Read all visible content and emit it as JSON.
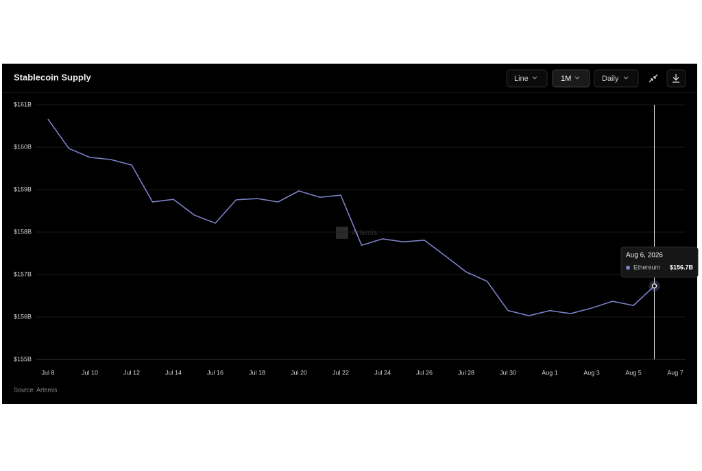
{
  "header": {
    "title": "Stablecoin Supply",
    "buttons": [
      "Line",
      "1M",
      "Daily"
    ]
  },
  "chart_data": {
    "type": "line",
    "x": [
      "2026-07-08",
      "2026-07-09",
      "2026-07-10",
      "2026-07-11",
      "2026-07-12",
      "2026-07-13",
      "2026-07-14",
      "2026-07-15",
      "2026-07-16",
      "2026-07-17",
      "2026-07-18",
      "2026-07-19",
      "2026-07-20",
      "2026-07-21",
      "2026-07-22",
      "2026-07-23",
      "2026-07-24",
      "2026-07-25",
      "2026-07-26",
      "2026-07-27",
      "2026-07-28",
      "2026-07-29",
      "2026-07-30",
      "2026-07-31",
      "2026-08-01",
      "2026-08-02",
      "2026-08-03",
      "2026-08-04",
      "2026-08-05",
      "2026-08-06"
    ],
    "series": [
      {
        "name": "Ethereum",
        "color": "#7c82c8",
        "values": [
          160.66,
          159.97,
          159.76,
          159.71,
          159.58,
          158.71,
          158.77,
          158.4,
          158.21,
          158.76,
          158.79,
          158.71,
          158.97,
          158.82,
          158.87,
          157.69,
          157.84,
          157.77,
          157.81,
          157.44,
          157.06,
          156.84,
          156.15,
          156.03,
          156.15,
          156.08,
          156.21,
          156.37,
          156.27,
          156.73
        ]
      }
    ],
    "xlim": [
      "2026-07-08",
      "2026-08-07"
    ],
    "xticks": [
      {
        "value": "2026-07-08",
        "label": "Jul 8"
      },
      {
        "value": "2026-07-10",
        "label": "Jul 10"
      },
      {
        "value": "2026-07-12",
        "label": "Jul 12"
      },
      {
        "value": "2026-07-14",
        "label": "Jul 14"
      },
      {
        "value": "2026-07-16",
        "label": "Jul 16"
      },
      {
        "value": "2026-07-18",
        "label": "Jul 18"
      },
      {
        "value": "2026-07-20",
        "label": "Jul 20"
      },
      {
        "value": "2026-07-22",
        "label": "Jul 22"
      },
      {
        "value": "2026-07-24",
        "label": "Jul 24"
      },
      {
        "value": "2026-07-26",
        "label": "Jul 26"
      },
      {
        "value": "2026-07-28",
        "label": "Jul 28"
      },
      {
        "value": "2026-07-30",
        "label": "Jul 30"
      },
      {
        "value": "2026-08-01",
        "label": "Aug 1"
      },
      {
        "value": "2026-08-03",
        "label": "Aug 3"
      },
      {
        "value": "2026-08-05",
        "label": "Aug 5"
      },
      {
        "value": "2026-08-07",
        "label": "Aug 7"
      }
    ],
    "ylim": [
      155,
      161
    ],
    "yticks": [
      {
        "value": 155,
        "label": "$155B"
      },
      {
        "value": 156,
        "label": "$156B"
      },
      {
        "value": 157,
        "label": "$157B"
      },
      {
        "value": 158,
        "label": "$158B"
      },
      {
        "value": 159,
        "label": "$159B"
      },
      {
        "value": 160,
        "label": "$160B"
      },
      {
        "value": 161,
        "label": "$161B"
      }
    ],
    "grid": true,
    "tooltip": {
      "title": "Aug 6, 2026",
      "value": 156.7,
      "value_label": "$156.7B"
    },
    "watermark": "Artemis",
    "source": "Source: Artemis"
  }
}
